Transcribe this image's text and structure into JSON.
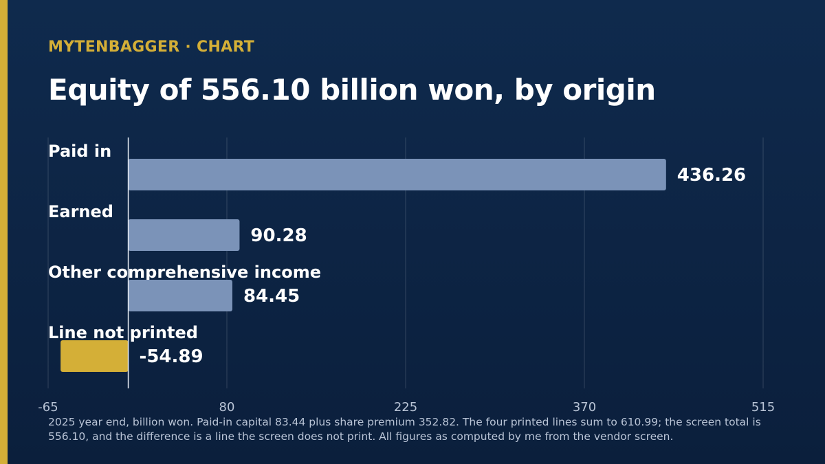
{
  "header": {
    "kicker": "MYTENBAGGER · CHART",
    "title": "Equity of 556.10 billion won, by origin"
  },
  "chart_data": {
    "type": "bar",
    "orientation": "horizontal",
    "categories": [
      "Paid in",
      "Earned",
      "Other comprehensive income",
      "Line not printed"
    ],
    "values": [
      436.26,
      90.28,
      84.45,
      -54.89
    ],
    "value_labels": [
      "436.26",
      "90.28",
      "84.45",
      "-54.89"
    ],
    "xlim": [
      -65,
      515
    ],
    "xticks": [
      -65,
      80,
      225,
      370,
      515
    ],
    "xtick_labels": [
      "-65",
      "80",
      "225",
      "370",
      "515"
    ],
    "grid": true,
    "colors": {
      "positive": "#7b93b8",
      "negative": "#d4af37"
    }
  },
  "footnote": "2025 year end, billion won. Paid-in capital 83.44 plus share premium 352.82. The four printed lines sum to 610.99; the screen total is 556.10, and the difference is a line the screen does not print. All figures as computed by me from the vendor screen.",
  "colors": {
    "accent": "#d4af37",
    "background": "#0d2444"
  }
}
